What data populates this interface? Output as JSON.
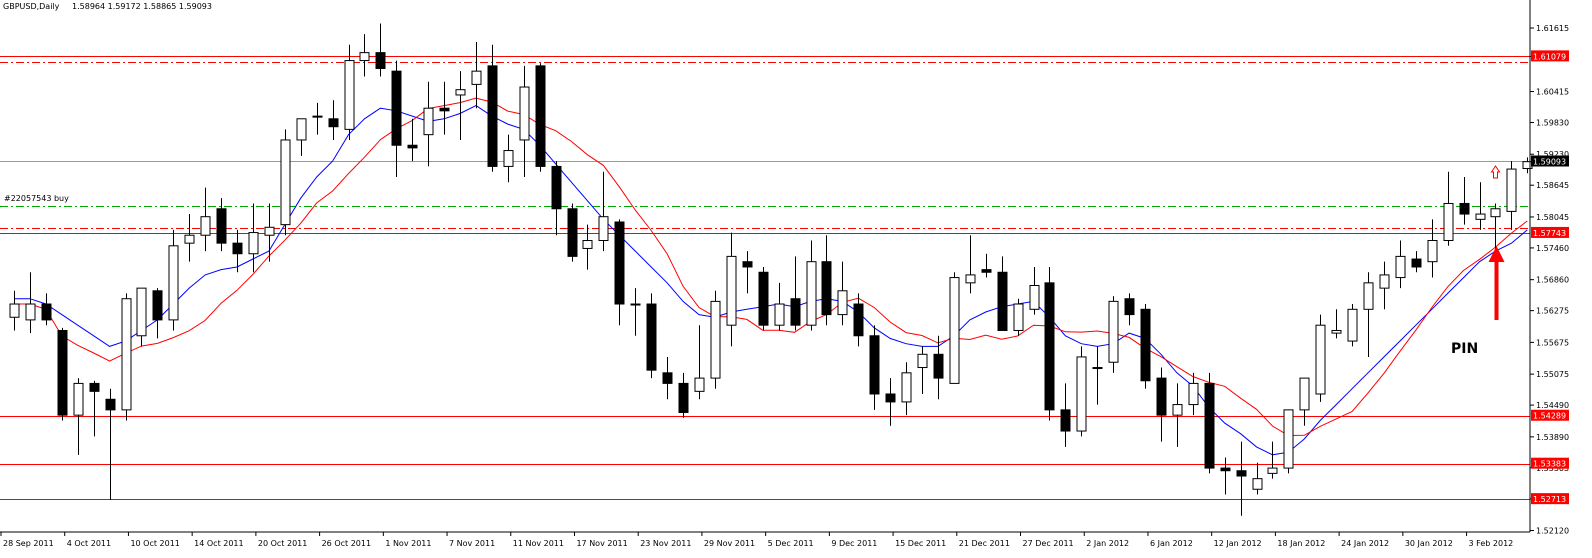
{
  "header": {
    "symbol_timeframe": "GBPUSD,Daily",
    "ohlc": "1.58964 1.59172 1.58865 1.59093"
  },
  "chart_data": {
    "type": "candlestick",
    "title": "GBPUSD,Daily",
    "ylim": [
      1.5213,
      1.6188
    ],
    "y_ticks": [
      "1.61615",
      "1.61079",
      "1.60415",
      "1.59830",
      "1.59230",
      "1.58645",
      "1.58045",
      "1.57460",
      "1.56860",
      "1.56275",
      "1.55675",
      "1.55075",
      "1.54490",
      "1.53890",
      "1.53305",
      "1.52720",
      "1.52120"
    ],
    "x_labels": [
      {
        "text": "28 Sep 2011",
        "index": 0
      },
      {
        "text": "4 Oct 2011",
        "index": 4
      },
      {
        "text": "10 Oct 2011",
        "index": 8
      },
      {
        "text": "14 Oct 2011",
        "index": 12
      },
      {
        "text": "20 Oct 2011",
        "index": 16
      },
      {
        "text": "26 Oct 2011",
        "index": 20
      },
      {
        "text": "1 Nov 2011",
        "index": 24
      },
      {
        "text": "7 Nov 2011",
        "index": 28
      },
      {
        "text": "11 Nov 2011",
        "index": 32
      },
      {
        "text": "17 Nov 2011",
        "index": 36
      },
      {
        "text": "23 Nov 2011",
        "index": 40
      },
      {
        "text": "29 Nov 2011",
        "index": 44
      },
      {
        "text": "5 Dec 2011",
        "index": 48
      },
      {
        "text": "9 Dec 2011",
        "index": 52
      },
      {
        "text": "15 Dec 2011",
        "index": 56
      },
      {
        "text": "21 Dec 2011",
        "index": 60
      },
      {
        "text": "27 Dec 2011",
        "index": 64
      },
      {
        "text": "2 Jan 2012",
        "index": 68
      },
      {
        "text": "6 Jan 2012",
        "index": 72
      },
      {
        "text": "12 Jan 2012",
        "index": 76
      },
      {
        "text": "18 Jan 2012",
        "index": 80
      },
      {
        "text": "24 Jan 2012",
        "index": 84
      },
      {
        "text": "30 Jan 2012",
        "index": 88
      },
      {
        "text": "3 Feb 2012",
        "index": 92
      }
    ],
    "candles": [
      {
        "o": 1.5615,
        "h": 1.5665,
        "l": 1.559,
        "c": 1.564
      },
      {
        "o": 1.561,
        "h": 1.57,
        "l": 1.5585,
        "c": 1.564
      },
      {
        "o": 1.564,
        "h": 1.566,
        "l": 1.56,
        "c": 1.561
      },
      {
        "o": 1.559,
        "h": 1.5595,
        "l": 1.542,
        "c": 1.543
      },
      {
        "o": 1.543,
        "h": 1.55,
        "l": 1.5355,
        "c": 1.549
      },
      {
        "o": 1.549,
        "h": 1.5495,
        "l": 1.539,
        "c": 1.5475
      },
      {
        "o": 1.546,
        "h": 1.548,
        "l": 1.527,
        "c": 1.544
      },
      {
        "o": 1.544,
        "h": 1.566,
        "l": 1.542,
        "c": 1.565
      },
      {
        "o": 1.558,
        "h": 1.567,
        "l": 1.556,
        "c": 1.567
      },
      {
        "o": 1.5665,
        "h": 1.567,
        "l": 1.5575,
        "c": 1.561
      },
      {
        "o": 1.561,
        "h": 1.578,
        "l": 1.559,
        "c": 1.575
      },
      {
        "o": 1.5755,
        "h": 1.581,
        "l": 1.572,
        "c": 1.577
      },
      {
        "o": 1.577,
        "h": 1.586,
        "l": 1.574,
        "c": 1.5805
      },
      {
        "o": 1.582,
        "h": 1.584,
        "l": 1.574,
        "c": 1.5755
      },
      {
        "o": 1.5755,
        "h": 1.578,
        "l": 1.57,
        "c": 1.5735
      },
      {
        "o": 1.5735,
        "h": 1.583,
        "l": 1.57,
        "c": 1.5775
      },
      {
        "o": 1.577,
        "h": 1.583,
        "l": 1.572,
        "c": 1.5785
      },
      {
        "o": 1.579,
        "h": 1.597,
        "l": 1.577,
        "c": 1.595
      },
      {
        "o": 1.595,
        "h": 1.599,
        "l": 1.592,
        "c": 1.599
      },
      {
        "o": 1.5995,
        "h": 1.602,
        "l": 1.596,
        "c": 1.5995
      },
      {
        "o": 1.599,
        "h": 1.6025,
        "l": 1.595,
        "c": 1.5975
      },
      {
        "o": 1.597,
        "h": 1.613,
        "l": 1.595,
        "c": 1.61
      },
      {
        "o": 1.61,
        "h": 1.615,
        "l": 1.607,
        "c": 1.6115
      },
      {
        "o": 1.6115,
        "h": 1.617,
        "l": 1.607,
        "c": 1.6085
      },
      {
        "o": 1.608,
        "h": 1.61,
        "l": 1.588,
        "c": 1.594
      },
      {
        "o": 1.594,
        "h": 1.599,
        "l": 1.591,
        "c": 1.5935
      },
      {
        "o": 1.596,
        "h": 1.606,
        "l": 1.59,
        "c": 1.601
      },
      {
        "o": 1.601,
        "h": 1.606,
        "l": 1.596,
        "c": 1.6005
      },
      {
        "o": 1.6035,
        "h": 1.608,
        "l": 1.595,
        "c": 1.6045
      },
      {
        "o": 1.6055,
        "h": 1.6135,
        "l": 1.601,
        "c": 1.608
      },
      {
        "o": 1.609,
        "h": 1.613,
        "l": 1.589,
        "c": 1.59
      },
      {
        "o": 1.59,
        "h": 1.596,
        "l": 1.587,
        "c": 1.593
      },
      {
        "o": 1.595,
        "h": 1.609,
        "l": 1.588,
        "c": 1.605
      },
      {
        "o": 1.609,
        "h": 1.6095,
        "l": 1.589,
        "c": 1.59
      },
      {
        "o": 1.59,
        "h": 1.591,
        "l": 1.577,
        "c": 1.582
      },
      {
        "o": 1.582,
        "h": 1.583,
        "l": 1.572,
        "c": 1.573
      },
      {
        "o": 1.5745,
        "h": 1.579,
        "l": 1.5705,
        "c": 1.576
      },
      {
        "o": 1.576,
        "h": 1.589,
        "l": 1.574,
        "c": 1.5805
      },
      {
        "o": 1.5795,
        "h": 1.58,
        "l": 1.56,
        "c": 1.564
      },
      {
        "o": 1.564,
        "h": 1.567,
        "l": 1.558,
        "c": 1.564
      },
      {
        "o": 1.564,
        "h": 1.566,
        "l": 1.55,
        "c": 1.5515
      },
      {
        "o": 1.551,
        "h": 1.554,
        "l": 1.546,
        "c": 1.549
      },
      {
        "o": 1.549,
        "h": 1.551,
        "l": 1.5425,
        "c": 1.5435
      },
      {
        "o": 1.5475,
        "h": 1.56,
        "l": 1.546,
        "c": 1.55
      },
      {
        "o": 1.55,
        "h": 1.5665,
        "l": 1.548,
        "c": 1.5645
      },
      {
        "o": 1.56,
        "h": 1.5775,
        "l": 1.556,
        "c": 1.573
      },
      {
        "o": 1.572,
        "h": 1.574,
        "l": 1.566,
        "c": 1.571
      },
      {
        "o": 1.57,
        "h": 1.571,
        "l": 1.559,
        "c": 1.56
      },
      {
        "o": 1.56,
        "h": 1.568,
        "l": 1.559,
        "c": 1.564
      },
      {
        "o": 1.565,
        "h": 1.573,
        "l": 1.559,
        "c": 1.56
      },
      {
        "o": 1.56,
        "h": 1.576,
        "l": 1.559,
        "c": 1.572
      },
      {
        "o": 1.572,
        "h": 1.577,
        "l": 1.56,
        "c": 1.562
      },
      {
        "o": 1.562,
        "h": 1.572,
        "l": 1.56,
        "c": 1.5665
      },
      {
        "o": 1.564,
        "h": 1.566,
        "l": 1.556,
        "c": 1.558
      },
      {
        "o": 1.558,
        "h": 1.56,
        "l": 1.544,
        "c": 1.547
      },
      {
        "o": 1.547,
        "h": 1.55,
        "l": 1.541,
        "c": 1.5455
      },
      {
        "o": 1.5455,
        "h": 1.553,
        "l": 1.543,
        "c": 1.551
      },
      {
        "o": 1.552,
        "h": 1.556,
        "l": 1.547,
        "c": 1.5545
      },
      {
        "o": 1.5545,
        "h": 1.558,
        "l": 1.546,
        "c": 1.55
      },
      {
        "o": 1.549,
        "h": 1.57,
        "l": 1.549,
        "c": 1.569
      },
      {
        "o": 1.568,
        "h": 1.577,
        "l": 1.566,
        "c": 1.5695
      },
      {
        "o": 1.5705,
        "h": 1.5735,
        "l": 1.569,
        "c": 1.57
      },
      {
        "o": 1.57,
        "h": 1.573,
        "l": 1.559,
        "c": 1.559
      },
      {
        "o": 1.559,
        "h": 1.565,
        "l": 1.558,
        "c": 1.564
      },
      {
        "o": 1.563,
        "h": 1.571,
        "l": 1.562,
        "c": 1.5675
      },
      {
        "o": 1.568,
        "h": 1.571,
        "l": 1.542,
        "c": 1.544
      },
      {
        "o": 1.544,
        "h": 1.549,
        "l": 1.537,
        "c": 1.54
      },
      {
        "o": 1.54,
        "h": 1.556,
        "l": 1.539,
        "c": 1.554
      },
      {
        "o": 1.552,
        "h": 1.556,
        "l": 1.545,
        "c": 1.552
      },
      {
        "o": 1.553,
        "h": 1.5655,
        "l": 1.551,
        "c": 1.5645
      },
      {
        "o": 1.565,
        "h": 1.566,
        "l": 1.56,
        "c": 1.562
      },
      {
        "o": 1.563,
        "h": 1.564,
        "l": 1.548,
        "c": 1.5495
      },
      {
        "o": 1.55,
        "h": 1.552,
        "l": 1.538,
        "c": 1.543
      },
      {
        "o": 1.543,
        "h": 1.549,
        "l": 1.537,
        "c": 1.545
      },
      {
        "o": 1.545,
        "h": 1.551,
        "l": 1.543,
        "c": 1.549
      },
      {
        "o": 1.549,
        "h": 1.551,
        "l": 1.532,
        "c": 1.533
      },
      {
        "o": 1.533,
        "h": 1.535,
        "l": 1.528,
        "c": 1.5325
      },
      {
        "o": 1.5325,
        "h": 1.538,
        "l": 1.524,
        "c": 1.5315
      },
      {
        "o": 1.529,
        "h": 1.534,
        "l": 1.528,
        "c": 1.531
      },
      {
        "o": 1.532,
        "h": 1.538,
        "l": 1.531,
        "c": 1.533
      },
      {
        "o": 1.533,
        "h": 1.544,
        "l": 1.532,
        "c": 1.544
      },
      {
        "o": 1.544,
        "h": 1.55,
        "l": 1.541,
        "c": 1.55
      },
      {
        "o": 1.547,
        "h": 1.562,
        "l": 1.5455,
        "c": 1.56
      },
      {
        "o": 1.5585,
        "h": 1.563,
        "l": 1.5575,
        "c": 1.559
      },
      {
        "o": 1.557,
        "h": 1.564,
        "l": 1.556,
        "c": 1.563
      },
      {
        "o": 1.563,
        "h": 1.57,
        "l": 1.554,
        "c": 1.568
      },
      {
        "o": 1.567,
        "h": 1.572,
        "l": 1.563,
        "c": 1.5695
      },
      {
        "o": 1.569,
        "h": 1.576,
        "l": 1.567,
        "c": 1.573
      },
      {
        "o": 1.5725,
        "h": 1.574,
        "l": 1.57,
        "c": 1.571
      },
      {
        "o": 1.572,
        "h": 1.58,
        "l": 1.569,
        "c": 1.576
      },
      {
        "o": 1.576,
        "h": 1.589,
        "l": 1.575,
        "c": 1.583
      },
      {
        "o": 1.583,
        "h": 1.588,
        "l": 1.579,
        "c": 1.581
      },
      {
        "o": 1.58,
        "h": 1.587,
        "l": 1.578,
        "c": 1.581
      },
      {
        "o": 1.5805,
        "h": 1.583,
        "l": 1.572,
        "c": 1.582
      },
      {
        "o": 1.5815,
        "h": 1.591,
        "l": 1.578,
        "c": 1.5895
      },
      {
        "o": 1.5896,
        "h": 1.5917,
        "l": 1.5887,
        "c": 1.5909
      }
    ],
    "ma_fast": [
      1.565,
      1.565,
      1.564,
      1.562,
      1.56,
      1.558,
      1.556,
      1.557,
      1.559,
      1.561,
      1.564,
      1.567,
      1.5695,
      1.5705,
      1.571,
      1.5725,
      1.574,
      1.579,
      1.584,
      1.588,
      1.591,
      1.596,
      1.599,
      1.601,
      1.6005,
      1.5995,
      1.5985,
      1.599,
      1.6,
      1.6015,
      1.5995,
      1.598,
      1.597,
      1.594,
      1.5905,
      1.587,
      1.5835,
      1.58,
      1.577,
      1.574,
      1.571,
      1.568,
      1.5645,
      1.562,
      1.5615,
      1.5625,
      1.563,
      1.5635,
      1.564,
      1.5635,
      1.5645,
      1.565,
      1.5645,
      1.5625,
      1.5595,
      1.5575,
      1.5565,
      1.556,
      1.556,
      1.558,
      1.561,
      1.5625,
      1.5635,
      1.564,
      1.5645,
      1.5615,
      1.558,
      1.5565,
      1.556,
      1.5565,
      1.5585,
      1.5575,
      1.5545,
      1.551,
      1.5485,
      1.5445,
      1.5415,
      1.5395,
      1.537,
      1.5355,
      1.536,
      1.5385,
      1.542,
      1.545,
      1.548,
      1.551,
      1.554,
      1.557,
      1.56,
      1.563,
      1.566,
      1.569,
      1.572,
      1.574,
      1.5755,
      1.578
    ]
  },
  "levels": [
    {
      "price": "1.61079",
      "style": "solid",
      "color": "#ff0000",
      "label": "1.61079"
    },
    {
      "price": "1.60970",
      "style": "dashdot",
      "color": "#ff0000"
    },
    {
      "price": "1.59093",
      "style": "solid",
      "color": "#999999",
      "label": "1.59093"
    },
    {
      "price": "1.58250",
      "style": "dashdot",
      "color": "#00aa00"
    },
    {
      "price": "1.57830",
      "style": "dashdot",
      "color": "#ff0000"
    },
    {
      "price": "1.57743",
      "style": "solid",
      "color": "#ff0000",
      "label": "1.57743"
    },
    {
      "price": "1.54289",
      "style": "solid",
      "color": "#ff0000",
      "label": "1.54289"
    },
    {
      "price": "1.53383",
      "style": "solid",
      "color": "#ff0000",
      "label": "1.53383"
    },
    {
      "price": "1.52713",
      "style": "solid",
      "color": "#ff0000",
      "label": "1.52713"
    }
  ],
  "order_label": "#22057543 buy",
  "annotation": {
    "text": "PIN",
    "color": "#ff0000"
  },
  "colors": {
    "bull_fill": "#ffffff",
    "bear_fill": "#000000",
    "ma_fast": "#0000ff",
    "ma_slow": "#ff0000"
  }
}
